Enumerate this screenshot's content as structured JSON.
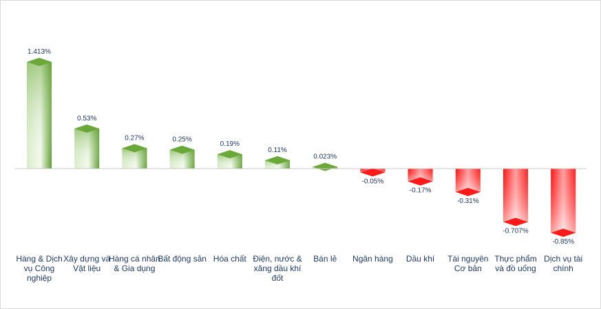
{
  "chart_data": {
    "type": "bar",
    "title": "",
    "xlabel": "",
    "ylabel": "",
    "categories": [
      "Hàng & Dịch vụ Công nghiệp",
      "Xây dựng và Vật liệu",
      "Hàng cá nhân & Gia dụng",
      "Bất động sản",
      "Hóa chất",
      "Điện, nước & xăng dầu khí đốt",
      "Bán lẻ",
      "Ngân hàng",
      "Dầu khí",
      "Tài nguyên Cơ bản",
      "Thực phẩm và đồ uống",
      "Dịch vụ tài chính"
    ],
    "values": [
      1.413,
      0.53,
      0.27,
      0.25,
      0.19,
      0.11,
      0.023,
      -0.05,
      -0.17,
      -0.31,
      -0.707,
      -0.85
    ],
    "value_labels": [
      "1.413%",
      "0.53%",
      "0.27%",
      "0.25%",
      "0.19%",
      "0.11%",
      "0.023%",
      "-0.05%",
      "-0.17%",
      "-0.31%",
      "-0.707%",
      "-0.85%"
    ],
    "ylim": [
      -0.85,
      1.413
    ],
    "grid": false,
    "legend": "none",
    "colors": {
      "positive_dark": "#6aa83a",
      "positive_light": "#ffffff",
      "negative_dark": "#ff2020",
      "negative_light": "#ffffff",
      "axis": "#c8c8c8",
      "text": "#1f3864"
    }
  }
}
